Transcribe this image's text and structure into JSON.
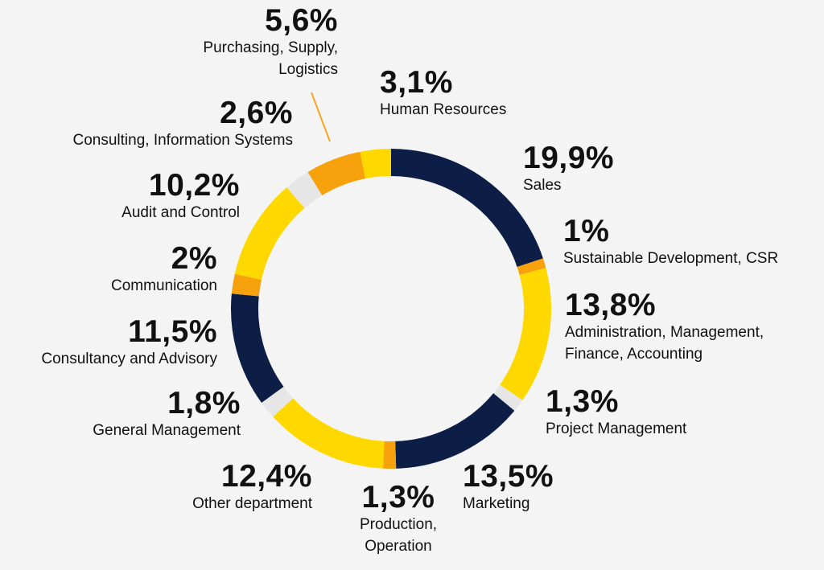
{
  "colors": {
    "background": "#f4f4f4",
    "navy": "#0c1e45",
    "yellow": "#ffd800",
    "orange": "#f7a10c",
    "grey": "#e6e6e6",
    "leader": "#f5a623"
  },
  "chart_data": {
    "type": "donut",
    "segments": [
      {
        "name": "Sales",
        "value": 19.9,
        "label": "19,9%",
        "color": "navy"
      },
      {
        "name": "Sustainable Development, CSR",
        "value": 1.0,
        "label": "1%",
        "color": "orange"
      },
      {
        "name": "Administration, Management,\nFinance, Accounting",
        "value": 13.8,
        "label": "13,8%",
        "color": "yellow"
      },
      {
        "name": "Project Management",
        "value": 1.3,
        "label": "1,3%",
        "color": "grey"
      },
      {
        "name": "Marketing",
        "value": 13.5,
        "label": "13,5%",
        "color": "navy"
      },
      {
        "name": "Production,\nOperation",
        "value": 1.3,
        "label": "1,3%",
        "color": "orange"
      },
      {
        "name": "Other department",
        "value": 12.4,
        "label": "12,4%",
        "color": "yellow"
      },
      {
        "name": "General Management",
        "value": 1.8,
        "label": "1,8%",
        "color": "grey"
      },
      {
        "name": "Consultancy and Advisory",
        "value": 11.5,
        "label": "11,5%",
        "color": "navy"
      },
      {
        "name": "Communication",
        "value": 2.0,
        "label": "2%",
        "color": "orange"
      },
      {
        "name": "Audit and Control",
        "value": 10.2,
        "label": "10,2%",
        "color": "yellow"
      },
      {
        "name": "Consulting, Information Systems",
        "value": 2.6,
        "label": "2,6%",
        "color": "grey"
      },
      {
        "name": "Purchasing, Supply,\nLogistics",
        "value": 5.6,
        "label": "5,6%",
        "color": "orange"
      },
      {
        "name": "Human Resources",
        "value": 3.1,
        "label": "3,1%",
        "color": "yellow"
      }
    ]
  }
}
